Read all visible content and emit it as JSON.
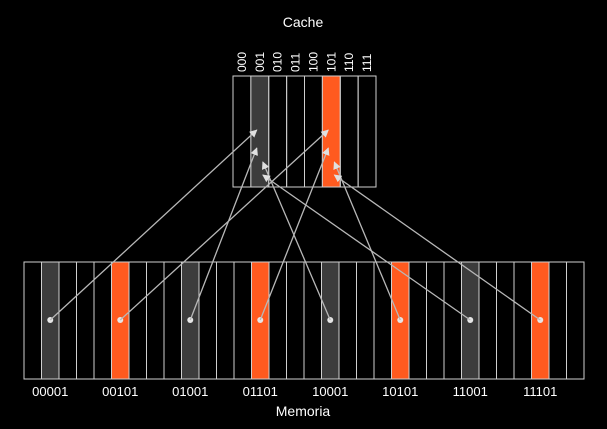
{
  "cache": {
    "title": "Cache",
    "slots": [
      "000",
      "001",
      "010",
      "011",
      "100",
      "101",
      "110",
      "111"
    ],
    "dark_slot": "001",
    "orange_slot": "101"
  },
  "memory": {
    "title": "Memoria",
    "block_labels": [
      "00001",
      "00101",
      "01001",
      "01101",
      "10001",
      "10101",
      "11001",
      "11101"
    ],
    "block_count": 32
  },
  "mappings": [
    {
      "from": "00001",
      "to": "001"
    },
    {
      "from": "00101",
      "to": "101"
    },
    {
      "from": "01001",
      "to": "001"
    },
    {
      "from": "01101",
      "to": "101"
    },
    {
      "from": "10001",
      "to": "001"
    },
    {
      "from": "10101",
      "to": "101"
    },
    {
      "from": "11001",
      "to": "001"
    },
    {
      "from": "11101",
      "to": "101"
    }
  ],
  "colors": {
    "background": "#000000",
    "outline": "#cfcfcf",
    "dark_fill": "#3c3c3c",
    "orange_fill": "#ff5a1f",
    "arrow": "#b8b8b8",
    "text": "#ffffff"
  }
}
